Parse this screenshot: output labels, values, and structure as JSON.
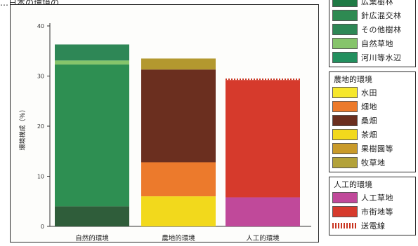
{
  "caption": "…日本の環境の…",
  "chart_data": {
    "type": "bar",
    "stacked": true,
    "ylabel": "環境構成（％）",
    "ylim": [
      0,
      40
    ],
    "yticks": [
      0,
      10,
      20,
      30,
      40
    ],
    "yticks_labels": [
      "0",
      "10",
      "20",
      "30",
      "40"
    ],
    "categories": [
      "自然的環境",
      "農地的環境",
      "人工的環境"
    ],
    "series": [
      {
        "name": "針広混交林",
        "color": "#2f5d3a",
        "values": [
          4.0,
          0,
          0
        ]
      },
      {
        "name": "広葉樹林",
        "color": "#2e8f52",
        "values": [
          28.3,
          0,
          0
        ]
      },
      {
        "name": "自然草地",
        "color": "#86c46b",
        "values": [
          0.8,
          0,
          0
        ]
      },
      {
        "name": "その他樹林",
        "color": "#2e8756",
        "values": [
          3.2,
          0,
          0
        ]
      },
      {
        "name": "茶畑",
        "color": "#f2d91c",
        "values": [
          0,
          6.0,
          0
        ]
      },
      {
        "name": "畑地",
        "color": "#ec7a2c",
        "values": [
          0,
          6.8,
          0
        ]
      },
      {
        "name": "桑畑",
        "color": "#6b2f1f",
        "values": [
          0,
          18.5,
          0
        ]
      },
      {
        "name": "牧草地",
        "color": "#b3982f",
        "values": [
          0,
          2.2,
          0
        ]
      },
      {
        "name": "人工草地",
        "color": "#c0499a",
        "values": [
          0,
          0,
          5.8
        ]
      },
      {
        "name": "市街地等",
        "color": "#d63a2c",
        "values": [
          0,
          0,
          23.4
        ]
      },
      {
        "name": "送電線",
        "color": "#c9331f",
        "values": [
          0,
          0,
          0.3
        ]
      }
    ]
  },
  "legend": {
    "groups": [
      {
        "title": "",
        "items": [
          {
            "label": "広葉樹林",
            "color": "#1f7a45",
            "style": "solid"
          },
          {
            "label": "針広混交林",
            "color": "#2e8a52",
            "style": "solid"
          },
          {
            "label": "その他樹林",
            "color": "#2e8756",
            "style": "solid"
          },
          {
            "label": "自然草地",
            "color": "#86c46b",
            "style": "solid"
          },
          {
            "label": "河川等水辺",
            "color": "#23905f",
            "style": "solid"
          }
        ]
      },
      {
        "title": "農地的環境",
        "items": [
          {
            "label": "水田",
            "color": "#f6e72c",
            "style": "solid"
          },
          {
            "label": "畑地",
            "color": "#ec7a2c",
            "style": "solid"
          },
          {
            "label": "桑畑",
            "color": "#6b2f1f",
            "style": "solid"
          },
          {
            "label": "茶畑",
            "color": "#f2d91c",
            "style": "solid"
          },
          {
            "label": "果樹園等",
            "color": "#c99a2a",
            "style": "solid"
          },
          {
            "label": "牧草地",
            "color": "#b3a23a",
            "style": "solid"
          }
        ]
      },
      {
        "title": "人工的環境",
        "items": [
          {
            "label": "人工草地",
            "color": "#c0499a",
            "style": "solid"
          },
          {
            "label": "市街地等",
            "color": "#d63a2c",
            "style": "solid"
          },
          {
            "label": "送電線",
            "color": "#c9331f",
            "style": "dashed"
          }
        ]
      }
    ]
  }
}
